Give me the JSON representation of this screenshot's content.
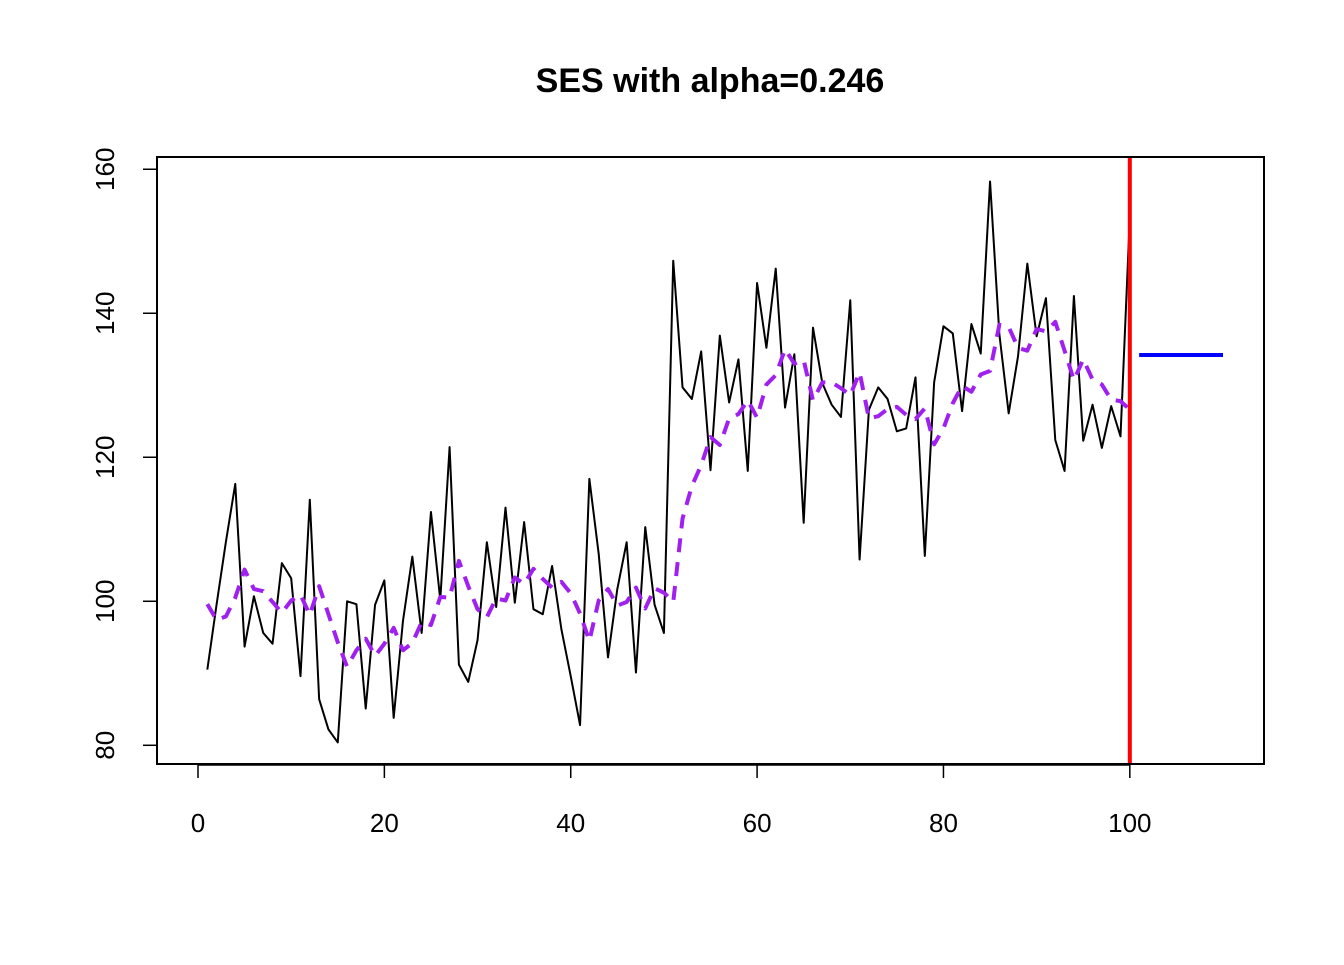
{
  "chart_data": {
    "type": "line",
    "title": "SES with alpha=0.246",
    "xlabel": "",
    "ylabel": "",
    "xlim": [
      -4.4,
      114.4
    ],
    "ylim": [
      77.4,
      161.7
    ],
    "xticks": [
      0,
      20,
      40,
      60,
      80,
      100
    ],
    "yticks": [
      80,
      100,
      120,
      140,
      160
    ],
    "grid": false,
    "legend": "none",
    "colors": {
      "observed": "#000000",
      "fitted": "#a020f0",
      "forecast": "#0000ff",
      "vline": "#ff0000",
      "frame": "#000000"
    },
    "series": [
      {
        "key": "observed",
        "style": "solid",
        "x": [
          1,
          2,
          3,
          4,
          5,
          6,
          7,
          8,
          9,
          10,
          11,
          12,
          13,
          14,
          15,
          16,
          17,
          18,
          19,
          20,
          21,
          22,
          23,
          24,
          25,
          26,
          27,
          28,
          29,
          30,
          31,
          32,
          33,
          34,
          35,
          36,
          37,
          38,
          39,
          40,
          41,
          42,
          43,
          44,
          45,
          46,
          47,
          48,
          49,
          50,
          51,
          52,
          53,
          54,
          55,
          56,
          57,
          58,
          59,
          60,
          61,
          62,
          63,
          64,
          65,
          66,
          67,
          68,
          69,
          70,
          71,
          72,
          73,
          74,
          75,
          76,
          77,
          78,
          79,
          80,
          81,
          82,
          83,
          84,
          85,
          86,
          87,
          88,
          89,
          90,
          91,
          92,
          93,
          94,
          95,
          96,
          97,
          98,
          99,
          100
        ],
        "values": [
          90.5,
          99.6,
          108.3,
          116.3,
          93.7,
          100.7,
          95.6,
          94.1,
          105.3,
          103.2,
          89.6,
          114.1,
          86.4,
          82.2,
          80.4,
          100.0,
          99.6,
          85.1,
          99.5,
          102.9,
          83.8,
          97.3,
          106.2,
          95.6,
          112.4,
          100.2,
          121.4,
          91.2,
          88.8,
          94.6,
          108.2,
          99.2,
          113.0,
          99.8,
          111.0,
          98.9,
          98.2,
          104.9,
          96.1,
          89.6,
          82.8,
          117.0,
          106.6,
          92.2,
          101.7,
          108.2,
          90.1,
          110.3,
          99.5,
          95.6,
          147.3,
          129.7,
          128.1,
          134.7,
          118.2,
          136.9,
          127.6,
          133.6,
          118.1,
          144.2,
          135.2,
          146.2,
          126.9,
          134.3,
          110.9,
          138.0,
          130.3,
          127.3,
          125.6,
          141.8,
          105.8,
          126.6,
          129.7,
          128.1,
          123.6,
          124.0,
          131.1,
          106.3,
          130.4,
          138.2,
          137.2,
          126.4,
          138.5,
          134.4,
          158.3,
          137.1,
          126.1,
          134.0,
          146.9,
          136.8,
          142.1,
          122.4,
          118.1,
          142.4,
          122.3,
          127.3,
          121.3,
          127.1,
          122.9,
          153.4
        ]
      },
      {
        "key": "fitted",
        "style": "dashed",
        "x": [
          1,
          2,
          3,
          4,
          5,
          6,
          7,
          8,
          9,
          10,
          11,
          12,
          13,
          14,
          15,
          16,
          17,
          18,
          19,
          20,
          21,
          22,
          23,
          24,
          25,
          26,
          27,
          28,
          29,
          30,
          31,
          32,
          33,
          34,
          35,
          36,
          37,
          38,
          39,
          40,
          41,
          42,
          43,
          44,
          45,
          46,
          47,
          48,
          49,
          50,
          51,
          52,
          53,
          54,
          55,
          56,
          57,
          58,
          59,
          60,
          61,
          62,
          63,
          64,
          65,
          66,
          67,
          68,
          69,
          70,
          71,
          72,
          73,
          74,
          75,
          76,
          77,
          78,
          79,
          80,
          81,
          82,
          83,
          84,
          85,
          86,
          87,
          88,
          89,
          90,
          91,
          92,
          93,
          94,
          95,
          96,
          97,
          98,
          99,
          100
        ],
        "values": [
          99.6,
          97.4,
          97.9,
          100.5,
          104.4,
          101.7,
          101.4,
          99.9,
          98.4,
          100.1,
          100.9,
          98.1,
          102.1,
          98.2,
          94.3,
          90.9,
          93.2,
          94.8,
          92.4,
          94.1,
          96.3,
          93.2,
          94.2,
          97.1,
          96.7,
          100.6,
          100.5,
          105.6,
          102.1,
          98.9,
          97.8,
          100.4,
          100.1,
          103.3,
          102.4,
          104.5,
          103.1,
          101.9,
          102.7,
          101.1,
          98.3,
          94.5,
          100.1,
          101.7,
          99.4,
          99.9,
          101.9,
          99.0,
          101.8,
          101.2,
          99.9,
          111.5,
          116.0,
          118.9,
          122.8,
          121.7,
          125.4,
          126.0,
          127.9,
          125.5,
          130.1,
          131.4,
          135.0,
          133.0,
          133.5,
          127.9,
          130.4,
          130.4,
          129.6,
          128.6,
          131.8,
          125.4,
          125.7,
          126.7,
          127.0,
          125.9,
          125.3,
          126.8,
          121.8,
          124.0,
          127.5,
          129.9,
          129.1,
          131.5,
          132.0,
          138.4,
          138.1,
          135.2,
          134.8,
          137.8,
          137.5,
          138.8,
          134.8,
          130.7,
          133.6,
          130.8,
          130.1,
          128.0,
          127.8,
          126.6
        ]
      },
      {
        "key": "forecast",
        "style": "solid",
        "x": [
          101,
          102,
          103,
          104,
          105,
          106,
          107,
          108,
          109,
          110
        ],
        "values": [
          134.2,
          134.2,
          134.2,
          134.2,
          134.2,
          134.2,
          134.2,
          134.2,
          134.2,
          134.2
        ]
      }
    ],
    "vline": {
      "x": 100
    }
  }
}
